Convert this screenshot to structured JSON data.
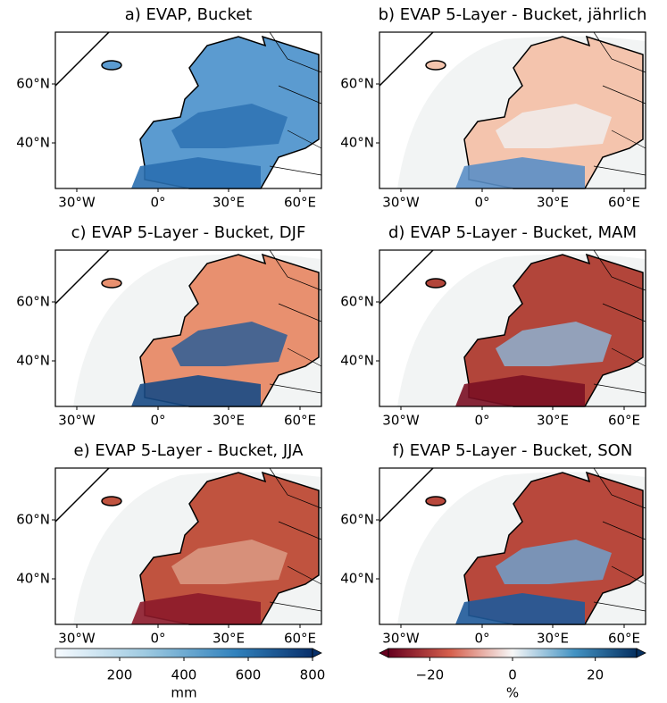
{
  "panels": [
    {
      "title": "a) EVAP, Bucket"
    },
    {
      "title": "b) EVAP 5-Layer - Bucket, jährlich"
    },
    {
      "title": "c) EVAP 5-Layer - Bucket, DJF"
    },
    {
      "title": "d) EVAP 5-Layer - Bucket, MAM"
    },
    {
      "title": "e) EVAP 5-Layer - Bucket, JJA"
    },
    {
      "title": "f) EVAP 5-Layer - Bucket, SON"
    }
  ],
  "lon_labels": [
    "30°W",
    "0°",
    "30°E",
    "60°E"
  ],
  "lat_labels": [
    "60°N",
    "40°N"
  ],
  "colorbars": [
    {
      "label": "mm",
      "lim": [
        0,
        800
      ],
      "ticks": [
        200,
        400,
        600,
        800
      ]
    },
    {
      "label": "%",
      "lim": [
        -30,
        30
      ],
      "ticks": [
        {
          "value": -20,
          "label": "−20"
        },
        0,
        20
      ]
    }
  ]
}
